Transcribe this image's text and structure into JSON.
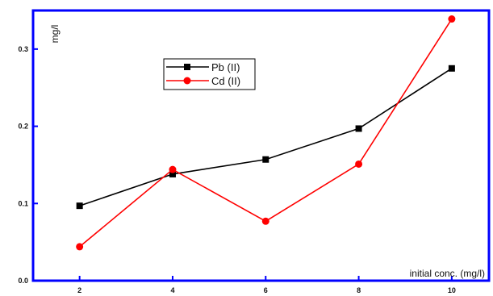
{
  "chart_data": {
    "type": "line",
    "title": "",
    "xlabel": "initial conc. (mg/l)",
    "ylabel": "mg/l",
    "xlim": [
      1.0,
      10.8
    ],
    "ylim": [
      0.0,
      0.35
    ],
    "x_ticks": [
      2,
      4,
      6,
      8,
      10
    ],
    "y_ticks": [
      0.0,
      0.1,
      0.2,
      0.3
    ],
    "x_tick_labels": [
      "2",
      "4",
      "6",
      "8",
      "10"
    ],
    "y_tick_labels": [
      "0.0",
      "0.1",
      "0.2",
      "0.3"
    ],
    "grid": false,
    "legend_position": "upper-left",
    "frame_color": "#0000ff",
    "series": [
      {
        "name": "Pb (II)",
        "color": "#000000",
        "marker": "square",
        "x": [
          2,
          4,
          6,
          8,
          10
        ],
        "values": [
          0.097,
          0.138,
          0.157,
          0.197,
          0.275
        ]
      },
      {
        "name": "Cd (II)",
        "color": "#ff0000",
        "marker": "circle",
        "x": [
          2,
          4,
          6,
          8,
          10
        ],
        "values": [
          0.044,
          0.144,
          0.077,
          0.151,
          0.339
        ]
      }
    ]
  }
}
